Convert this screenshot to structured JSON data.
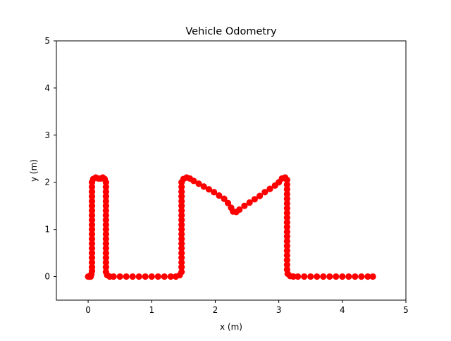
{
  "chart_data": {
    "type": "scatter",
    "title": "Vehicle Odometry",
    "xlabel": "x (m)",
    "ylabel": "y (m)",
    "xlim": [
      -0.5,
      5
    ],
    "ylim": [
      -0.5,
      5
    ],
    "xticks": [
      0,
      1,
      2,
      3,
      4,
      5
    ],
    "yticks": [
      0,
      1,
      2,
      3,
      4,
      5
    ],
    "grid": false,
    "marker_color": "#ff0000",
    "series": [
      {
        "marker": "circle",
        "color": "#ff0000",
        "points": [
          [
            0,
            0
          ],
          [
            0.02,
            0
          ],
          [
            0.04,
            0
          ],
          [
            0.05,
            0.05
          ],
          [
            0.06,
            0.12
          ],
          [
            0.06,
            0.2
          ],
          [
            0.06,
            0.3
          ],
          [
            0.06,
            0.4
          ],
          [
            0.06,
            0.5
          ],
          [
            0.06,
            0.6
          ],
          [
            0.06,
            0.7
          ],
          [
            0.06,
            0.8
          ],
          [
            0.06,
            0.9
          ],
          [
            0.06,
            1.0
          ],
          [
            0.06,
            1.1
          ],
          [
            0.06,
            1.2
          ],
          [
            0.06,
            1.3
          ],
          [
            0.06,
            1.4
          ],
          [
            0.06,
            1.5
          ],
          [
            0.06,
            1.6
          ],
          [
            0.06,
            1.7
          ],
          [
            0.06,
            1.8
          ],
          [
            0.06,
            1.9
          ],
          [
            0.06,
            2.0
          ],
          [
            0.08,
            2.07
          ],
          [
            0.12,
            2.1
          ],
          [
            0.16,
            2.08
          ],
          [
            0.2,
            2.08
          ],
          [
            0.23,
            2.1
          ],
          [
            0.26,
            2.07
          ],
          [
            0.28,
            2.0
          ],
          [
            0.28,
            1.9
          ],
          [
            0.28,
            1.8
          ],
          [
            0.28,
            1.7
          ],
          [
            0.28,
            1.6
          ],
          [
            0.28,
            1.5
          ],
          [
            0.28,
            1.4
          ],
          [
            0.28,
            1.3
          ],
          [
            0.28,
            1.2
          ],
          [
            0.28,
            1.1
          ],
          [
            0.28,
            1.0
          ],
          [
            0.28,
            0.9
          ],
          [
            0.28,
            0.8
          ],
          [
            0.28,
            0.7
          ],
          [
            0.28,
            0.6
          ],
          [
            0.28,
            0.5
          ],
          [
            0.28,
            0.4
          ],
          [
            0.28,
            0.3
          ],
          [
            0.28,
            0.2
          ],
          [
            0.28,
            0.1
          ],
          [
            0.3,
            0.03
          ],
          [
            0.34,
            0
          ],
          [
            0.4,
            0
          ],
          [
            0.5,
            0
          ],
          [
            0.6,
            0
          ],
          [
            0.7,
            0
          ],
          [
            0.8,
            0
          ],
          [
            0.9,
            0
          ],
          [
            1.0,
            0
          ],
          [
            1.1,
            0
          ],
          [
            1.2,
            0
          ],
          [
            1.3,
            0
          ],
          [
            1.38,
            0
          ],
          [
            1.44,
            0.03
          ],
          [
            1.47,
            0.1
          ],
          [
            1.47,
            0.2
          ],
          [
            1.47,
            0.3
          ],
          [
            1.47,
            0.4
          ],
          [
            1.47,
            0.5
          ],
          [
            1.47,
            0.6
          ],
          [
            1.47,
            0.7
          ],
          [
            1.47,
            0.8
          ],
          [
            1.47,
            0.9
          ],
          [
            1.47,
            1.0
          ],
          [
            1.47,
            1.1
          ],
          [
            1.47,
            1.2
          ],
          [
            1.47,
            1.3
          ],
          [
            1.47,
            1.4
          ],
          [
            1.47,
            1.5
          ],
          [
            1.47,
            1.6
          ],
          [
            1.47,
            1.7
          ],
          [
            1.47,
            1.8
          ],
          [
            1.47,
            1.9
          ],
          [
            1.47,
            2.0
          ],
          [
            1.5,
            2.07
          ],
          [
            1.55,
            2.1
          ],
          [
            1.6,
            2.08
          ],
          [
            1.66,
            2.03
          ],
          [
            1.74,
            1.97
          ],
          [
            1.82,
            1.91
          ],
          [
            1.9,
            1.85
          ],
          [
            1.98,
            1.79
          ],
          [
            2.06,
            1.72
          ],
          [
            2.14,
            1.65
          ],
          [
            2.2,
            1.56
          ],
          [
            2.25,
            1.46
          ],
          [
            2.28,
            1.38
          ],
          [
            2.33,
            1.37
          ],
          [
            2.38,
            1.42
          ],
          [
            2.46,
            1.5
          ],
          [
            2.54,
            1.57
          ],
          [
            2.62,
            1.64
          ],
          [
            2.7,
            1.71
          ],
          [
            2.78,
            1.79
          ],
          [
            2.86,
            1.86
          ],
          [
            2.94,
            1.93
          ],
          [
            3.0,
            2.0
          ],
          [
            3.05,
            2.08
          ],
          [
            3.1,
            2.1
          ],
          [
            3.13,
            2.05
          ],
          [
            3.13,
            1.95
          ],
          [
            3.13,
            1.85
          ],
          [
            3.13,
            1.75
          ],
          [
            3.13,
            1.65
          ],
          [
            3.13,
            1.55
          ],
          [
            3.13,
            1.45
          ],
          [
            3.13,
            1.35
          ],
          [
            3.13,
            1.25
          ],
          [
            3.13,
            1.15
          ],
          [
            3.13,
            1.05
          ],
          [
            3.13,
            0.95
          ],
          [
            3.13,
            0.85
          ],
          [
            3.13,
            0.75
          ],
          [
            3.13,
            0.65
          ],
          [
            3.13,
            0.55
          ],
          [
            3.13,
            0.45
          ],
          [
            3.13,
            0.35
          ],
          [
            3.13,
            0.25
          ],
          [
            3.13,
            0.15
          ],
          [
            3.14,
            0.06
          ],
          [
            3.18,
            0.01
          ],
          [
            3.23,
            0
          ],
          [
            3.3,
            0
          ],
          [
            3.4,
            0
          ],
          [
            3.5,
            0
          ],
          [
            3.6,
            0
          ],
          [
            3.7,
            0
          ],
          [
            3.8,
            0
          ],
          [
            3.9,
            0
          ],
          [
            4.0,
            0
          ],
          [
            4.1,
            0
          ],
          [
            4.2,
            0
          ],
          [
            4.3,
            0
          ],
          [
            4.4,
            0
          ],
          [
            4.48,
            0
          ]
        ]
      }
    ]
  }
}
